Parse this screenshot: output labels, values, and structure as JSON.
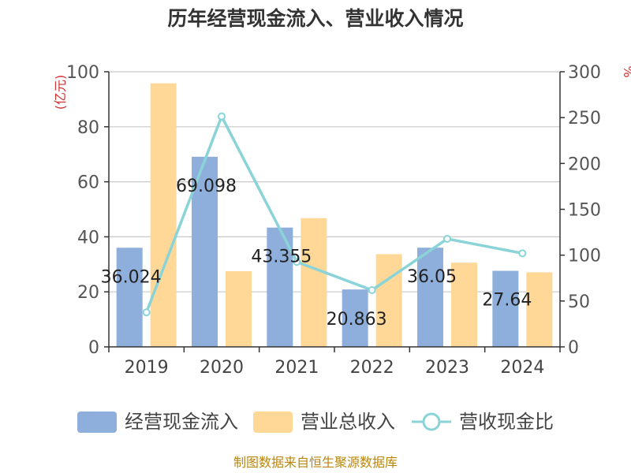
{
  "chart_data": {
    "type": "bar",
    "title": "历年经营现金流入、营业收入情况",
    "categories": [
      "2019",
      "2020",
      "2021",
      "2022",
      "2023",
      "2024"
    ],
    "series": [
      {
        "name": "经营现金流入",
        "kind": "bar",
        "axis": "left",
        "color": "#8eaedb",
        "values": [
          36.024,
          69.098,
          43.355,
          20.863,
          36.05,
          27.64
        ],
        "labels": [
          "36.024",
          "69.098",
          "43.355",
          "20.863",
          "36.05",
          "27.64"
        ]
      },
      {
        "name": "营业总收入",
        "kind": "bar",
        "axis": "left",
        "color": "#ffd897",
        "values": [
          95.8,
          27.5,
          46.8,
          33.7,
          30.6,
          27.1
        ]
      },
      {
        "name": "营收现金比",
        "kind": "line",
        "axis": "right",
        "color": "#8ad4d8",
        "values": [
          37.6,
          251.3,
          92.6,
          61.9,
          117.8,
          102.0
        ]
      }
    ],
    "y_left": {
      "unit": "(亿元)",
      "ylim": [
        0,
        100
      ],
      "ticks": [
        "0",
        "20",
        "40",
        "60",
        "80",
        "100"
      ]
    },
    "y_right": {
      "unit": "%",
      "ylim": [
        0,
        300
      ],
      "ticks": [
        "0",
        "50",
        "100",
        "150",
        "200",
        "250",
        "300"
      ]
    },
    "grid": true,
    "legend_position": "bottom"
  },
  "source": "制图数据来自恒生聚源数据库"
}
